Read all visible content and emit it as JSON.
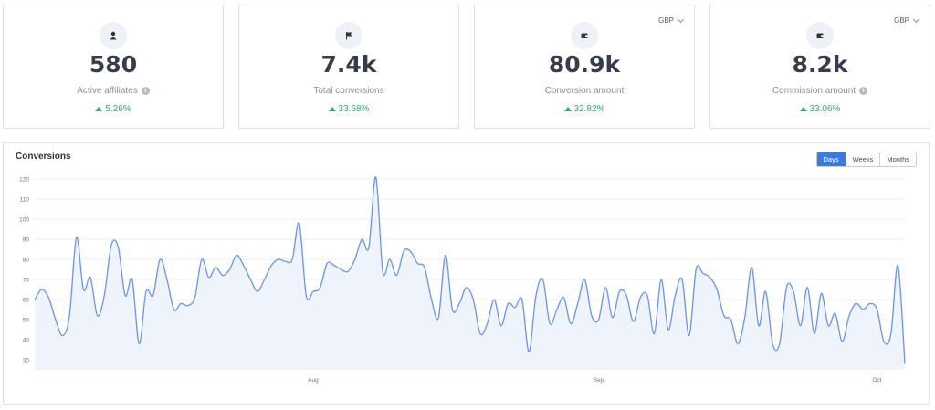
{
  "stats": [
    {
      "icon": "user-icon",
      "value": "580",
      "label": "Active affiliates",
      "has_info": true,
      "change": "5.26%",
      "currency": ""
    },
    {
      "icon": "flag-icon",
      "value": "7.4k",
      "label": "Total conversions",
      "has_info": false,
      "change": "33.68%",
      "currency": ""
    },
    {
      "icon": "wallet-icon",
      "value": "80.9k",
      "label": "Conversion amount",
      "has_info": false,
      "change": "32.82%",
      "currency": "GBP"
    },
    {
      "icon": "wallet-icon",
      "value": "8.2k",
      "label": "Commission amount",
      "has_info": true,
      "change": "33.06%",
      "currency": "GBP"
    }
  ],
  "colors": {
    "accent": "#3a7be3",
    "positive": "#36a96e",
    "line": "#6b95e0",
    "fill": "#eef3fc"
  },
  "chart_panel": {
    "title": "Conversions",
    "range_buttons": [
      "Days",
      "Weeks",
      "Months"
    ],
    "active_range": "Days"
  },
  "chart_data": {
    "type": "area",
    "title": "Conversions",
    "xlabel": "",
    "ylabel": "",
    "ylim": [
      25,
      125
    ],
    "yticks": [
      30,
      40,
      50,
      60,
      70,
      80,
      90,
      100,
      110,
      120
    ],
    "x_tick_labels": [
      {
        "label": "Aug",
        "index": 40
      },
      {
        "label": "Sep",
        "index": 81
      },
      {
        "label": "Oct",
        "index": 121
      }
    ],
    "grid": true,
    "values": [
      60,
      65,
      61,
      50,
      42,
      52,
      91,
      65,
      71,
      52,
      62,
      87,
      86,
      62,
      70,
      38,
      64,
      62,
      80,
      70,
      55,
      58,
      57,
      61,
      80,
      71,
      76,
      72,
      75,
      82,
      77,
      70,
      64,
      70,
      77,
      80,
      79,
      80,
      98,
      62,
      64,
      66,
      78,
      77,
      75,
      74,
      80,
      90,
      86,
      121,
      74,
      80,
      72,
      84,
      84,
      78,
      76,
      60,
      51,
      82,
      55,
      58,
      66,
      60,
      43,
      48,
      60,
      47,
      58,
      56,
      60,
      34,
      62,
      70,
      48,
      55,
      61,
      48,
      58,
      70,
      52,
      50,
      66,
      51,
      64,
      62,
      49,
      61,
      62,
      43,
      70,
      45,
      62,
      70,
      42,
      75,
      73,
      71,
      65,
      52,
      50,
      38,
      51,
      76,
      47,
      64,
      38,
      38,
      66,
      64,
      47,
      66,
      43,
      63,
      47,
      53,
      39,
      52,
      58,
      55,
      58,
      55,
      39,
      43,
      77,
      28
    ]
  }
}
